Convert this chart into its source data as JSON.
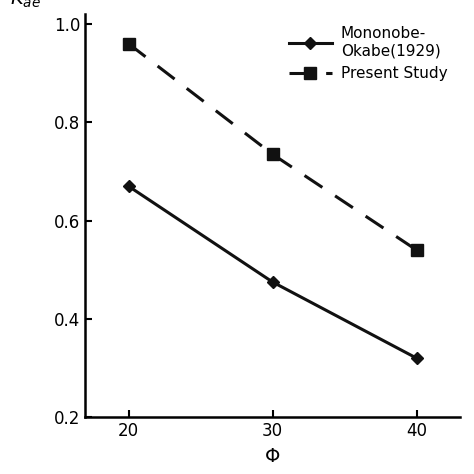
{
  "phi": [
    20,
    30,
    40
  ],
  "mononobe_values": [
    0.67,
    0.475,
    0.32
  ],
  "present_study_values": [
    0.96,
    0.735,
    0.54
  ],
  "xlabel": "$\\Phi$",
  "ylabel": "$K_{ae}$",
  "xlim": [
    17,
    43
  ],
  "ylim": [
    0.2,
    1.02
  ],
  "xticks": [
    20,
    30,
    40
  ],
  "yticks": [
    0.2,
    0.4,
    0.6,
    0.8,
    1.0
  ],
  "legend_mononobe": "Mononobe-\nOkabe(1929)",
  "legend_present": "Present Study",
  "line_color": "#111111",
  "background_color": "#ffffff",
  "figsize": [
    4.74,
    4.74
  ],
  "dpi": 100
}
